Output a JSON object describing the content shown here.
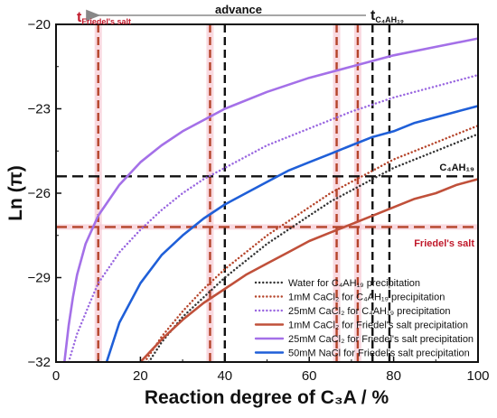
{
  "chart_data": {
    "type": "line",
    "xlabel": "Reaction degree of C₃A / %",
    "ylabel": "Ln (π)",
    "xlim": [
      0,
      100
    ],
    "ylim": [
      -32,
      -20
    ],
    "x_ticks": [
      0,
      20,
      40,
      60,
      80,
      100
    ],
    "y_ticks": [
      -32,
      -29,
      -26,
      -23,
      -20
    ],
    "grid": false,
    "legend_position": "bottom-right",
    "series": [
      {
        "name": "Water for C₄AH₁₉ precipitation",
        "color": "#333333",
        "style": "dotted",
        "x": [
          22,
          25,
          30,
          35,
          40,
          45,
          50,
          55,
          60,
          65,
          70,
          75,
          80,
          85,
          90,
          95,
          100
        ],
        "y": [
          -32.0,
          -31.3,
          -30.4,
          -29.7,
          -29.0,
          -28.4,
          -27.8,
          -27.3,
          -26.8,
          -26.3,
          -25.9,
          -25.5,
          -25.1,
          -24.8,
          -24.5,
          -24.2,
          -23.9
        ]
      },
      {
        "name": "1mM CaCl₂ for C₄AH₁₉ precipitation",
        "color": "#b5442a",
        "style": "dotted",
        "x": [
          21,
          25,
          30,
          35,
          40,
          45,
          50,
          55,
          60,
          65,
          70,
          75,
          80,
          85,
          90,
          95,
          100
        ],
        "y": [
          -32.0,
          -31.1,
          -30.2,
          -29.4,
          -28.7,
          -28.1,
          -27.5,
          -27.0,
          -26.5,
          -26.0,
          -25.6,
          -25.2,
          -24.8,
          -24.5,
          -24.2,
          -23.9,
          -23.6
        ]
      },
      {
        "name": "25mM CaCl₂ for C₄AH₁₉ precipitation",
        "color": "#9966e0",
        "style": "dotted",
        "x": [
          3,
          5,
          8,
          10,
          15,
          20,
          25,
          30,
          35,
          40,
          50,
          60,
          70,
          80,
          90,
          100
        ],
        "y": [
          -32.0,
          -31.0,
          -29.9,
          -29.2,
          -28.1,
          -27.3,
          -26.6,
          -26.0,
          -25.5,
          -25.1,
          -24.3,
          -23.7,
          -23.1,
          -22.6,
          -22.2,
          -21.8
        ]
      },
      {
        "name": "1mM CaCl₂ for Friedel's salt precipitation",
        "color": "#c0503a",
        "style": "solid",
        "x": [
          20,
          25,
          30,
          35,
          40,
          45,
          50,
          55,
          60,
          65,
          70,
          75,
          80,
          85,
          90,
          95,
          100
        ],
        "y": [
          -32.0,
          -31.2,
          -30.5,
          -29.9,
          -29.4,
          -28.9,
          -28.5,
          -28.1,
          -27.7,
          -27.4,
          -27.1,
          -26.8,
          -26.5,
          -26.2,
          -26.0,
          -25.7,
          -25.5
        ]
      },
      {
        "name": "25mM CaCl₂ for Friedel's salt precipitation",
        "color": "#a470e8",
        "style": "solid",
        "x": [
          2,
          3,
          4,
          5,
          7,
          10,
          15,
          20,
          25,
          30,
          40,
          50,
          60,
          70,
          80,
          90,
          100
        ],
        "y": [
          -32.0,
          -30.7,
          -29.7,
          -28.9,
          -27.8,
          -26.8,
          -25.7,
          -24.9,
          -24.3,
          -23.8,
          -23.0,
          -22.4,
          -21.9,
          -21.5,
          -21.1,
          -20.8,
          -20.5
        ]
      },
      {
        "name": "50mM NaCl for Friedel's salt precipitation",
        "color": "#1f5fd8",
        "style": "solid",
        "x": [
          12,
          15,
          20,
          25,
          30,
          35,
          40,
          45,
          50,
          55,
          60,
          65,
          70,
          75,
          80,
          85,
          90,
          95,
          100
        ],
        "y": [
          -32.0,
          -30.6,
          -29.2,
          -28.2,
          -27.5,
          -26.9,
          -26.4,
          -26.0,
          -25.6,
          -25.2,
          -24.9,
          -24.6,
          -24.3,
          -24.0,
          -23.8,
          -23.5,
          -23.3,
          -23.1,
          -22.9
        ]
      }
    ],
    "reference_lines": {
      "horizontal": [
        {
          "label": "C₄AH₁₉",
          "y": -25.4,
          "color": "#111111",
          "label_color": "#111111"
        },
        {
          "label": "Friedel's salt",
          "y": -27.2,
          "color": "#b5442a",
          "label_color": "#c0182a"
        }
      ],
      "vertical": [
        {
          "x": 10,
          "color": "#b5442a"
        },
        {
          "x": 36.5,
          "color": "#b5442a"
        },
        {
          "x": 40,
          "color": "#111111"
        },
        {
          "x": 66.5,
          "color": "#b5442a"
        },
        {
          "x": 71.5,
          "color": "#b5442a"
        },
        {
          "x": 75,
          "color": "#111111"
        },
        {
          "x": 79,
          "color": "#111111"
        }
      ]
    },
    "annotations": {
      "advance": "advance",
      "t_friedel": "t",
      "t_friedel_sub": "Friedel's salt",
      "t_c4ah19": "t",
      "t_c4ah19_sub": "C₄AH₁₉"
    }
  }
}
